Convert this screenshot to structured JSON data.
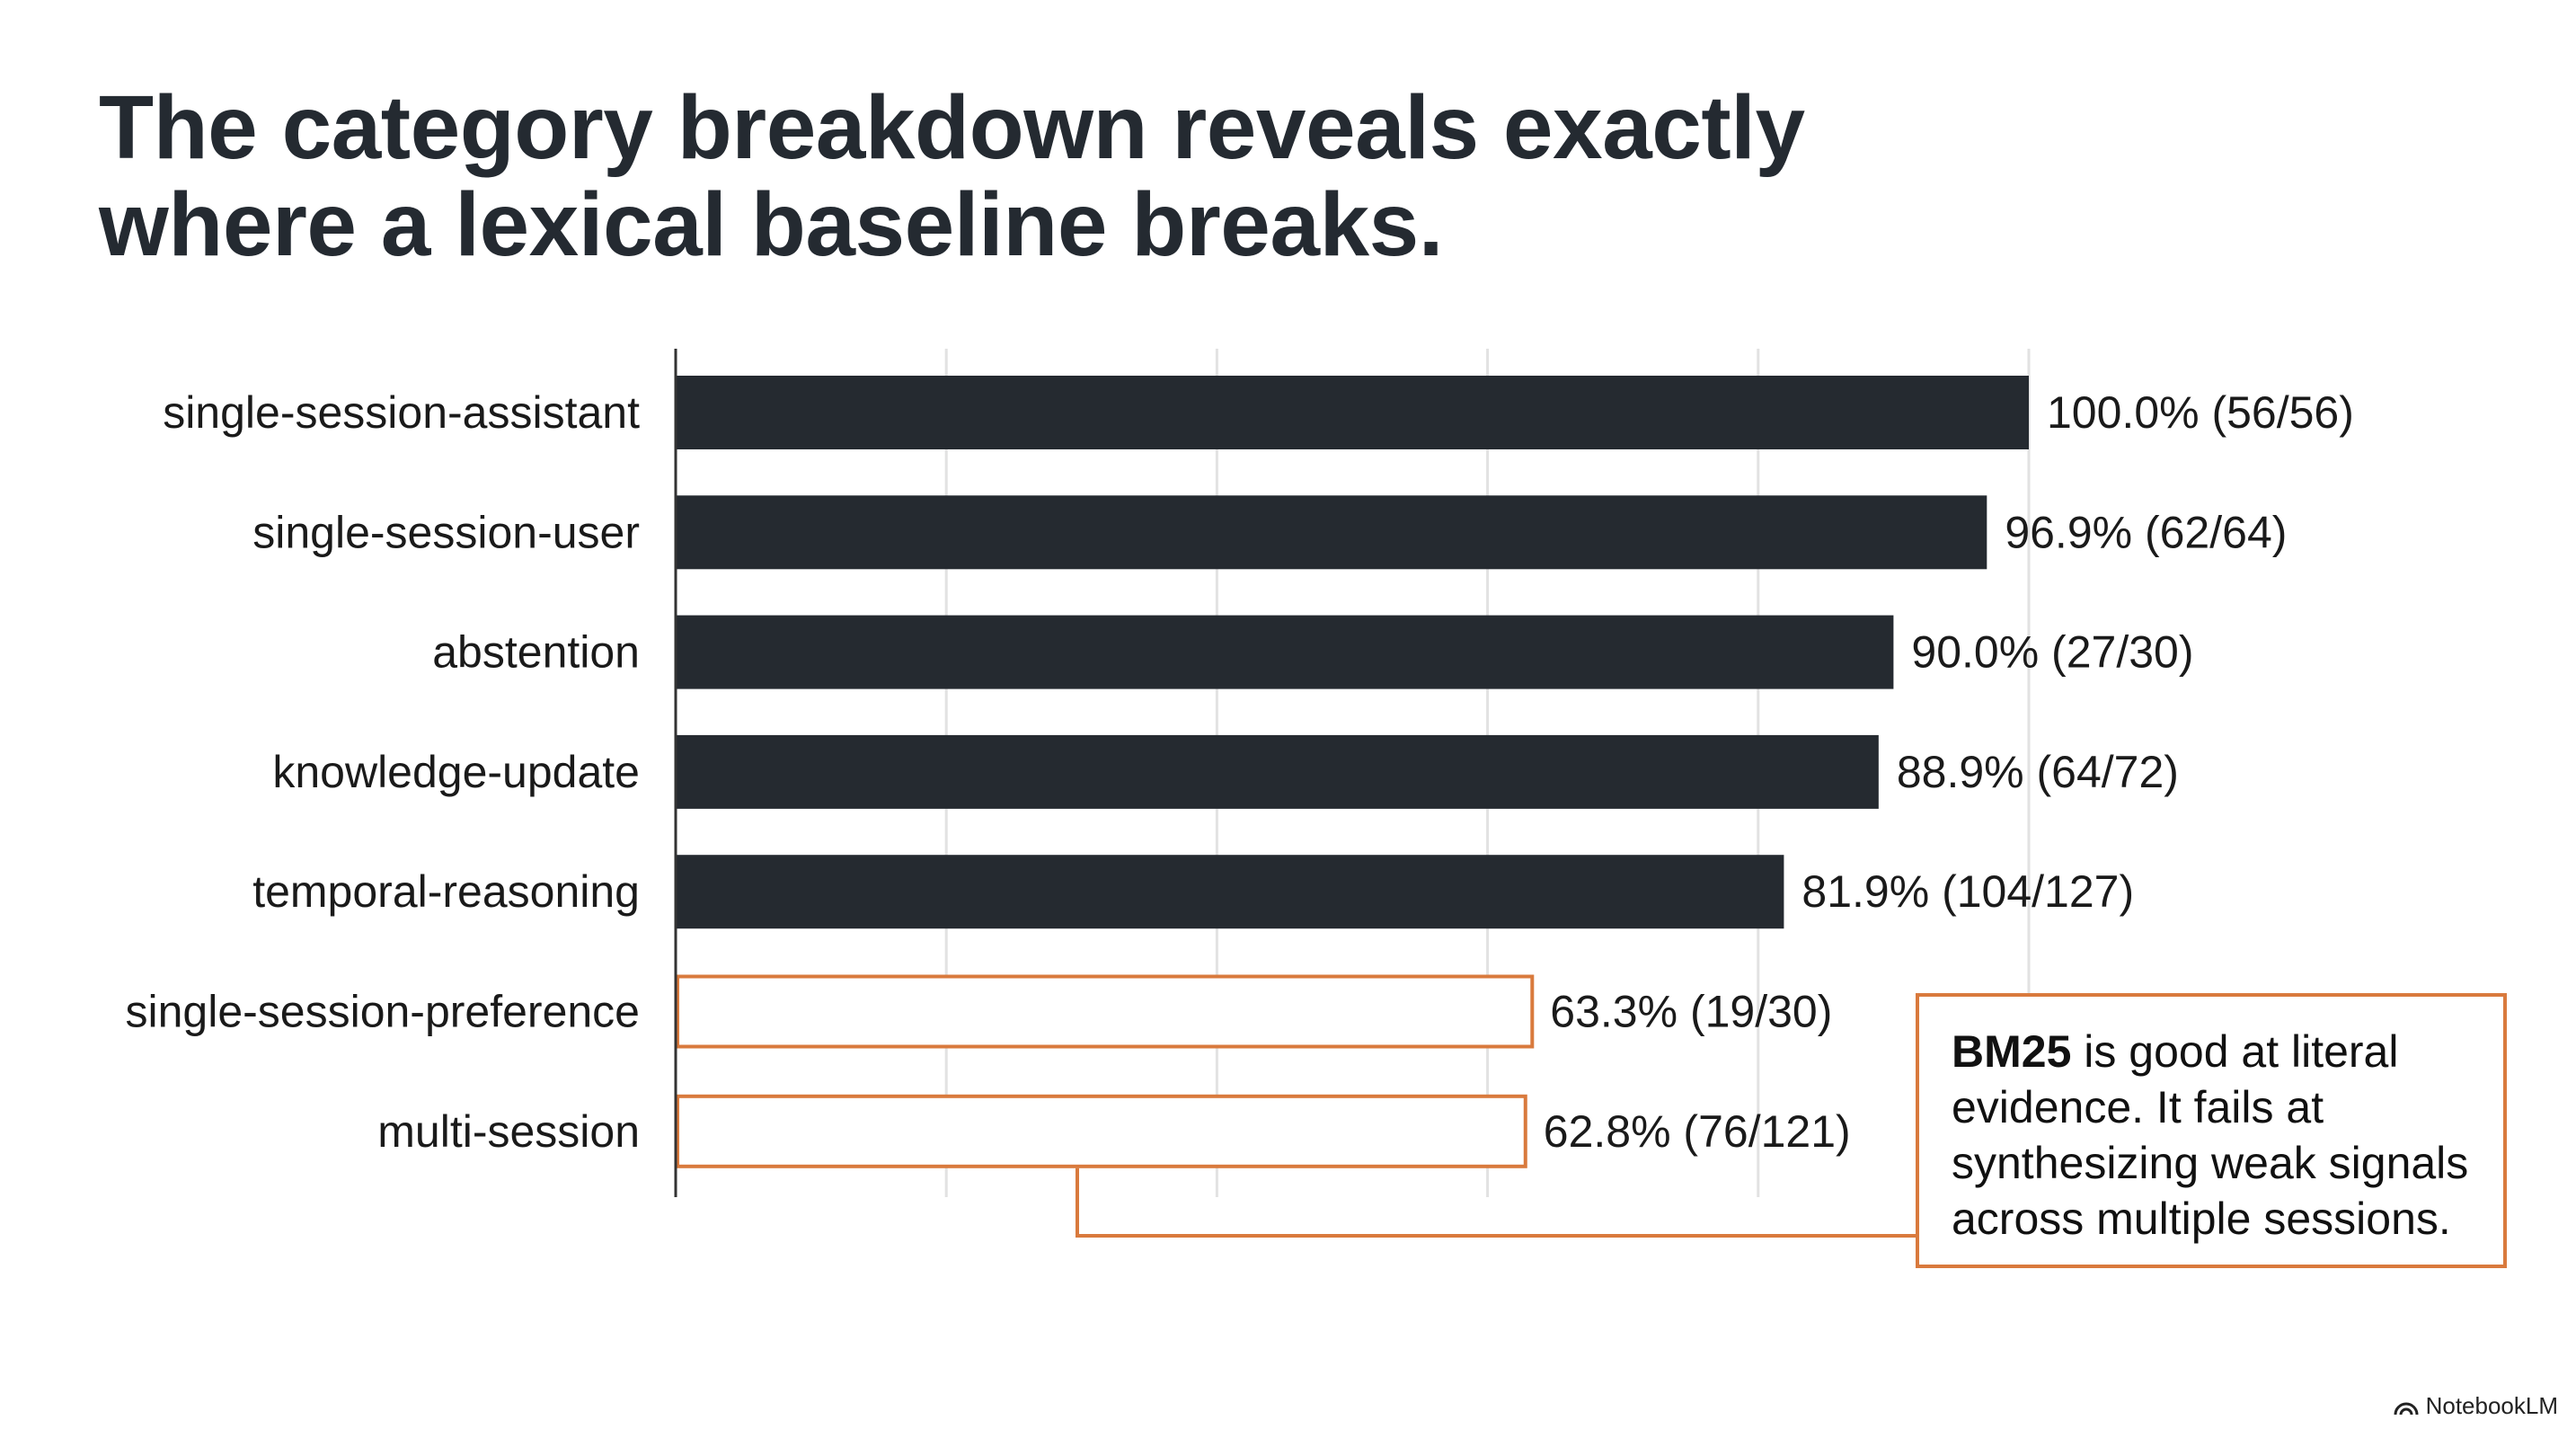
{
  "title": {
    "line1": "The category breakdown reveals exactly",
    "line2": "where a lexical baseline breaks."
  },
  "chart_data": {
    "type": "bar",
    "orientation": "horizontal",
    "categories": [
      "single-session-assistant",
      "single-session-user",
      "abstention",
      "knowledge-update",
      "temporal-reasoning",
      "single-session-preference",
      "multi-session"
    ],
    "values": [
      100.0,
      96.9,
      90.0,
      88.9,
      81.9,
      63.3,
      62.8
    ],
    "data_labels": [
      "100.0% (56/56)",
      "96.9% (62/64)",
      "90.0% (27/30)",
      "88.9% (64/72)",
      "81.9% (104/127)",
      "63.3% (19/30)",
      "62.8% (76/121)"
    ],
    "highlighted": [
      false,
      false,
      false,
      false,
      false,
      true,
      true
    ],
    "xlim": [
      0,
      100
    ],
    "grid": true,
    "colors": {
      "bar": "#252a30",
      "highlight": "#d97a3d",
      "grid": "#e2e2e2",
      "axis": "#333333"
    }
  },
  "callout": {
    "bold": "BM25",
    "text": " is good at literal evidence. It fails at synthesizing weak signals across multiple sessions."
  },
  "brand": {
    "label": "NotebookLM",
    "icon": "notebooklm-logo-icon"
  }
}
